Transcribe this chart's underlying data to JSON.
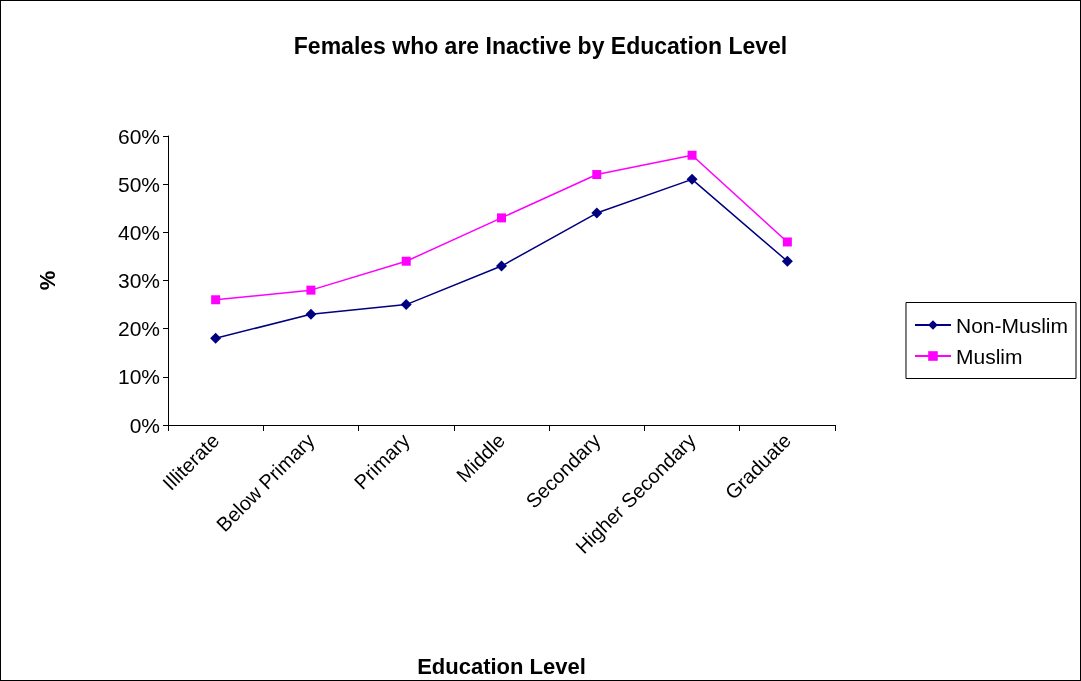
{
  "chart_data": {
    "type": "line",
    "title": "Females who are Inactive by Education Level",
    "xlabel": "Education Level",
    "ylabel": "%",
    "categories": [
      "Illiterate",
      "Below Primary",
      "Primary",
      "Middle",
      "Secondary",
      "Higher Secondary",
      "Graduate"
    ],
    "series": [
      {
        "name": "Non-Muslim",
        "color": "#000080",
        "marker": "diamond",
        "values": [
          18,
          23,
          25,
          33,
          44,
          51,
          34
        ]
      },
      {
        "name": "Muslim",
        "color": "#ff00ff",
        "marker": "square",
        "values": [
          26,
          28,
          34,
          43,
          52,
          56,
          38
        ]
      }
    ],
    "ylim": [
      0,
      60
    ],
    "yticks": [
      {
        "value": 0,
        "label": "0%"
      },
      {
        "value": 10,
        "label": "10%"
      },
      {
        "value": 20,
        "label": "20%"
      },
      {
        "value": 30,
        "label": "30%"
      },
      {
        "value": 40,
        "label": "40%"
      },
      {
        "value": 50,
        "label": "50%"
      },
      {
        "value": 60,
        "label": "60%"
      }
    ],
    "grid": false,
    "legend": "right",
    "line_style": "solid"
  }
}
